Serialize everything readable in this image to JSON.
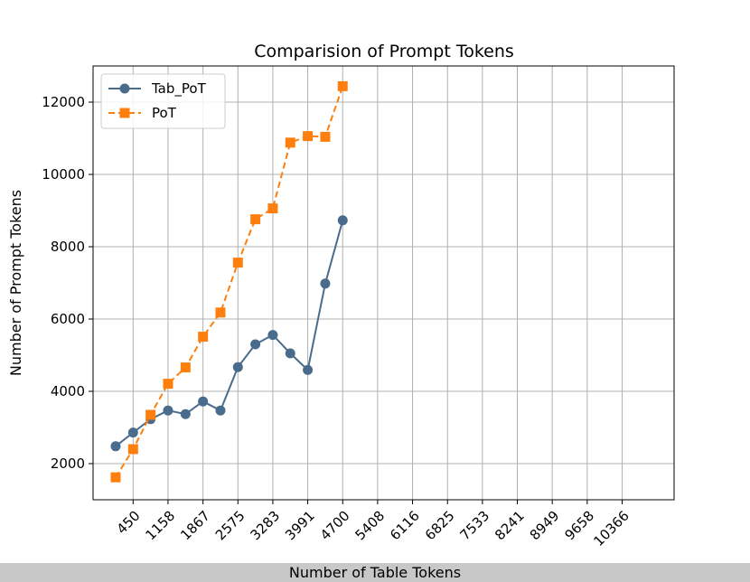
{
  "chart_data": {
    "type": "line",
    "title": "Comparision of Prompt Tokens",
    "xlabel": "Number of Table Tokens",
    "ylabel": "Number of Prompt Tokens",
    "x_ticks": [
      "450",
      "1158",
      "1867",
      "2575",
      "3283",
      "3991",
      "4700",
      "5408",
      "6116",
      "6825",
      "7533",
      "8241",
      "8949",
      "9658",
      "10366"
    ],
    "y_ticks": [
      "2000",
      "4000",
      "6000",
      "8000",
      "10000",
      "12000"
    ],
    "xlim": [
      -362,
      11420
    ],
    "ylim": [
      1000,
      13000
    ],
    "grid": true,
    "legend_position": "upper-left",
    "series": [
      {
        "name": "Tab_PoT",
        "color": "#4a6c8c",
        "marker": "circle",
        "linestyle": "solid",
        "x": [
          96,
          450,
          804,
          1158,
          1513,
          1867,
          2221,
          2575,
          2929,
          3283,
          3637,
          3991,
          4346,
          4700
        ],
        "values": [
          2480,
          2860,
          3230,
          3470,
          3370,
          3720,
          3470,
          4670,
          5300,
          5560,
          5050,
          4590,
          6980,
          8730
        ]
      },
      {
        "name": "PoT",
        "color": "#ff7f0e",
        "marker": "square",
        "linestyle": "dashed",
        "x": [
          96,
          450,
          804,
          1158,
          1513,
          1867,
          2221,
          2575,
          2929,
          3283,
          3637,
          3991,
          4346,
          4700
        ],
        "values": [
          1620,
          2400,
          3350,
          4210,
          4660,
          5510,
          6180,
          7560,
          8760,
          9060,
          10880,
          11060,
          11040,
          12440
        ]
      }
    ]
  }
}
